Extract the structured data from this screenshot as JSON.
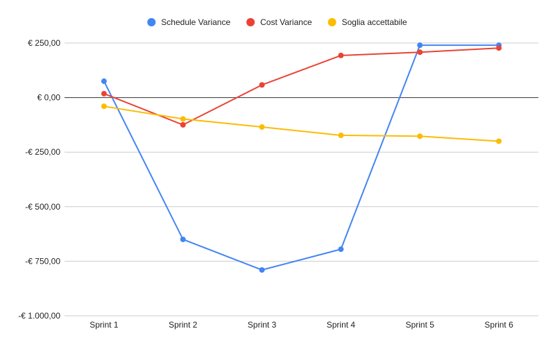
{
  "chart_data": {
    "type": "line",
    "title": "",
    "xlabel": "",
    "ylabel": "",
    "categories": [
      "Sprint 1",
      "Sprint 2",
      "Sprint 3",
      "Sprint 4",
      "Sprint 5",
      "Sprint 6"
    ],
    "y_ticks": [
      {
        "value": 250,
        "label": "€ 250,00"
      },
      {
        "value": 0,
        "label": "€ 0,00"
      },
      {
        "value": -250,
        "label": "-€ 250,00"
      },
      {
        "value": -500,
        "label": "-€ 500,00"
      },
      {
        "value": -750,
        "label": "-€ 750,00"
      },
      {
        "value": -1000,
        "label": "-€ 1.000,00"
      }
    ],
    "ylim": [
      -1000,
      250
    ],
    "grid": true,
    "legend_position": "top",
    "series": [
      {
        "name": "Schedule Variance",
        "color": "#4285F4",
        "values": [
          75,
          -650,
          -790,
          -695,
          240,
          240
        ]
      },
      {
        "name": "Cost Variance",
        "color": "#EA4335",
        "values": [
          18,
          -125,
          58,
          193,
          208,
          227
        ]
      },
      {
        "name": "Soglia accettabile",
        "color": "#FBBC04",
        "values": [
          -40,
          -98,
          -135,
          -173,
          -177,
          -200
        ]
      }
    ]
  }
}
